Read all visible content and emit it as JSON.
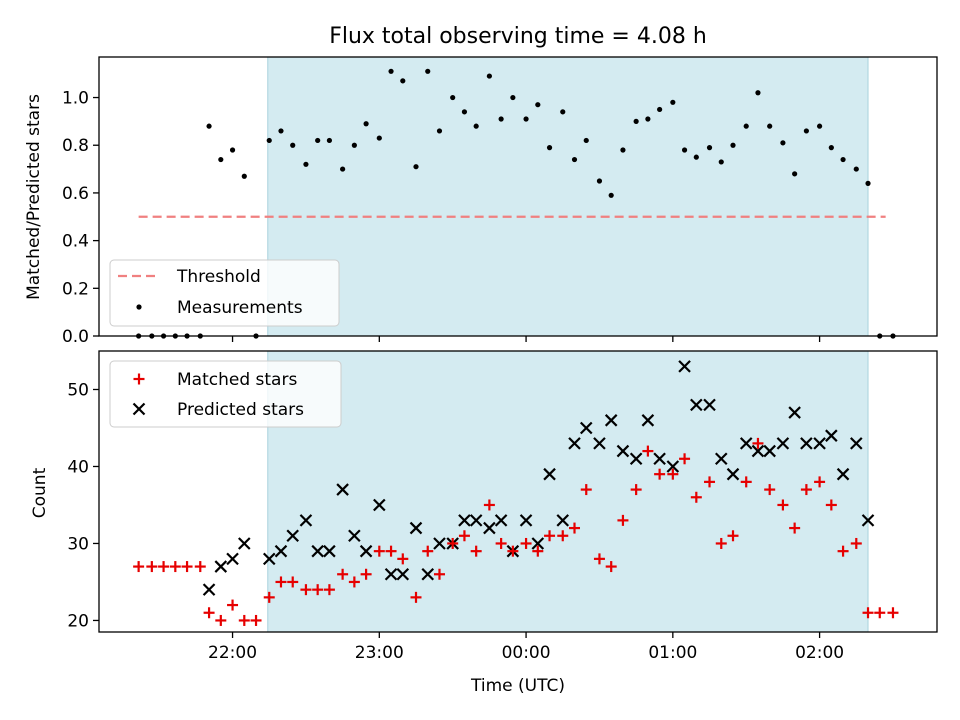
{
  "chart_data": [
    {
      "type": "scatter",
      "title": "Flux total observing time = 4.08 h",
      "xlabel": "",
      "ylabel": "Matched/Predicted stars",
      "x_unit": "hours (UTC, 24 = 00:00)",
      "xlim": [
        21.09,
        26.8
      ],
      "ylim": [
        0,
        1.17
      ],
      "yticks": [
        "0.0",
        "0.2",
        "0.4",
        "0.6",
        "0.8",
        "1.0"
      ],
      "observing_window": [
        22.24,
        26.33
      ],
      "observing_window_color": "#d4ebf1",
      "legend": {
        "placement": "lower-left",
        "entries": [
          "Threshold",
          "Measurements"
        ]
      },
      "threshold": {
        "name": "Threshold",
        "value": 0.5,
        "x_range": [
          21.36,
          26.45
        ],
        "color": "#f08080",
        "style": "dashed"
      },
      "series": [
        {
          "name": "Measurements",
          "color": "#000000",
          "points": [
            [
              21.36,
              0.0
            ],
            [
              21.45,
              0.0
            ],
            [
              21.53,
              0.0
            ],
            [
              21.61,
              0.0
            ],
            [
              21.69,
              0.0
            ],
            [
              21.78,
              0.0
            ],
            [
              21.84,
              0.88
            ],
            [
              21.92,
              0.74
            ],
            [
              22.0,
              0.78
            ],
            [
              22.08,
              0.67
            ],
            [
              22.16,
              0.0
            ],
            [
              22.25,
              0.82
            ],
            [
              22.33,
              0.86
            ],
            [
              22.41,
              0.8
            ],
            [
              22.5,
              0.72
            ],
            [
              22.58,
              0.82
            ],
            [
              22.66,
              0.82
            ],
            [
              22.75,
              0.7
            ],
            [
              22.83,
              0.8
            ],
            [
              22.91,
              0.89
            ],
            [
              23.0,
              0.83
            ],
            [
              23.08,
              1.11
            ],
            [
              23.16,
              1.07
            ],
            [
              23.25,
              0.71
            ],
            [
              23.33,
              1.11
            ],
            [
              23.41,
              0.86
            ],
            [
              23.5,
              1.0
            ],
            [
              23.58,
              0.94
            ],
            [
              23.66,
              0.88
            ],
            [
              23.75,
              1.09
            ],
            [
              23.83,
              0.91
            ],
            [
              23.91,
              1.0
            ],
            [
              24.0,
              0.91
            ],
            [
              24.08,
              0.97
            ],
            [
              24.16,
              0.79
            ],
            [
              24.25,
              0.94
            ],
            [
              24.33,
              0.74
            ],
            [
              24.41,
              0.82
            ],
            [
              24.5,
              0.65
            ],
            [
              24.58,
              0.59
            ],
            [
              24.66,
              0.78
            ],
            [
              24.75,
              0.9
            ],
            [
              24.83,
              0.91
            ],
            [
              24.91,
              0.95
            ],
            [
              25.0,
              0.98
            ],
            [
              25.08,
              0.78
            ],
            [
              25.16,
              0.75
            ],
            [
              25.25,
              0.79
            ],
            [
              25.33,
              0.73
            ],
            [
              25.41,
              0.8
            ],
            [
              25.5,
              0.88
            ],
            [
              25.58,
              1.02
            ],
            [
              25.66,
              0.88
            ],
            [
              25.75,
              0.81
            ],
            [
              25.83,
              0.68
            ],
            [
              25.91,
              0.86
            ],
            [
              26.0,
              0.88
            ],
            [
              26.08,
              0.79
            ],
            [
              26.16,
              0.74
            ],
            [
              26.25,
              0.7
            ],
            [
              26.33,
              0.64
            ],
            [
              26.41,
              0.0
            ],
            [
              26.5,
              0.0
            ]
          ]
        }
      ]
    },
    {
      "type": "scatter",
      "title": "",
      "xlabel": "Time (UTC)",
      "ylabel": "Count",
      "x_unit": "hours (UTC, 24 = 00:00)",
      "xlim": [
        21.09,
        26.8
      ],
      "ylim": [
        18.5,
        55
      ],
      "yticks": [
        "20",
        "30",
        "40",
        "50"
      ],
      "xticks": [
        [
          22,
          "22:00"
        ],
        [
          23,
          "23:00"
        ],
        [
          24,
          "00:00"
        ],
        [
          25,
          "01:00"
        ],
        [
          26,
          "02:00"
        ]
      ],
      "observing_window": [
        22.24,
        26.33
      ],
      "observing_window_color": "#d4ebf1",
      "legend": {
        "placement": "top-left",
        "entries": [
          "Matched stars",
          "Predicted stars"
        ]
      },
      "series": [
        {
          "name": "Matched stars",
          "marker": "plus",
          "color": "#e60000",
          "points": [
            [
              21.36,
              27
            ],
            [
              21.45,
              27
            ],
            [
              21.53,
              27
            ],
            [
              21.61,
              27
            ],
            [
              21.69,
              27
            ],
            [
              21.78,
              27
            ],
            [
              21.84,
              21
            ],
            [
              21.92,
              20
            ],
            [
              22.0,
              22
            ],
            [
              22.08,
              20
            ],
            [
              22.16,
              20
            ],
            [
              22.25,
              23
            ],
            [
              22.33,
              25
            ],
            [
              22.41,
              25
            ],
            [
              22.5,
              24
            ],
            [
              22.58,
              24
            ],
            [
              22.66,
              24
            ],
            [
              22.75,
              26
            ],
            [
              22.83,
              25
            ],
            [
              22.91,
              26
            ],
            [
              23.0,
              29
            ],
            [
              23.08,
              29
            ],
            [
              23.16,
              28
            ],
            [
              23.25,
              23
            ],
            [
              23.33,
              29
            ],
            [
              23.41,
              26
            ],
            [
              23.5,
              30
            ],
            [
              23.58,
              31
            ],
            [
              23.66,
              29
            ],
            [
              23.75,
              35
            ],
            [
              23.83,
              30
            ],
            [
              23.91,
              29
            ],
            [
              24.0,
              30
            ],
            [
              24.08,
              29
            ],
            [
              24.16,
              31
            ],
            [
              24.25,
              31
            ],
            [
              24.33,
              32
            ],
            [
              24.41,
              37
            ],
            [
              24.5,
              28
            ],
            [
              24.58,
              27
            ],
            [
              24.66,
              33
            ],
            [
              24.75,
              37
            ],
            [
              24.83,
              42
            ],
            [
              24.91,
              39
            ],
            [
              25.0,
              39
            ],
            [
              25.08,
              41
            ],
            [
              25.16,
              36
            ],
            [
              25.25,
              38
            ],
            [
              25.33,
              30
            ],
            [
              25.41,
              31
            ],
            [
              25.5,
              38
            ],
            [
              25.58,
              43
            ],
            [
              25.66,
              37
            ],
            [
              25.75,
              35
            ],
            [
              25.83,
              32
            ],
            [
              25.91,
              37
            ],
            [
              26.0,
              38
            ],
            [
              26.08,
              35
            ],
            [
              26.16,
              29
            ],
            [
              26.25,
              30
            ],
            [
              26.33,
              21
            ],
            [
              26.41,
              21
            ],
            [
              26.5,
              21
            ]
          ]
        },
        {
          "name": "Predicted stars",
          "marker": "x",
          "color": "#000000",
          "points": [
            [
              21.84,
              24
            ],
            [
              21.92,
              27
            ],
            [
              22.0,
              28
            ],
            [
              22.08,
              30
            ],
            [
              22.25,
              28
            ],
            [
              22.33,
              29
            ],
            [
              22.41,
              31
            ],
            [
              22.5,
              33
            ],
            [
              22.58,
              29
            ],
            [
              22.66,
              29
            ],
            [
              22.75,
              37
            ],
            [
              22.83,
              31
            ],
            [
              22.91,
              29
            ],
            [
              23.0,
              35
            ],
            [
              23.08,
              26
            ],
            [
              23.16,
              26
            ],
            [
              23.25,
              32
            ],
            [
              23.33,
              26
            ],
            [
              23.41,
              30
            ],
            [
              23.5,
              30
            ],
            [
              23.58,
              33
            ],
            [
              23.66,
              33
            ],
            [
              23.75,
              32
            ],
            [
              23.83,
              33
            ],
            [
              23.91,
              29
            ],
            [
              24.0,
              33
            ],
            [
              24.08,
              30
            ],
            [
              24.16,
              39
            ],
            [
              24.25,
              33
            ],
            [
              24.33,
              43
            ],
            [
              24.41,
              45
            ],
            [
              24.5,
              43
            ],
            [
              24.58,
              46
            ],
            [
              24.66,
              42
            ],
            [
              24.75,
              41
            ],
            [
              24.83,
              46
            ],
            [
              24.91,
              41
            ],
            [
              25.0,
              40
            ],
            [
              25.08,
              53
            ],
            [
              25.16,
              48
            ],
            [
              25.25,
              48
            ],
            [
              25.33,
              41
            ],
            [
              25.41,
              39
            ],
            [
              25.5,
              43
            ],
            [
              25.58,
              42
            ],
            [
              25.66,
              42
            ],
            [
              25.75,
              43
            ],
            [
              25.83,
              47
            ],
            [
              25.91,
              43
            ],
            [
              26.0,
              43
            ],
            [
              26.08,
              44
            ],
            [
              26.16,
              39
            ],
            [
              26.25,
              43
            ],
            [
              26.33,
              33
            ]
          ]
        }
      ]
    }
  ]
}
